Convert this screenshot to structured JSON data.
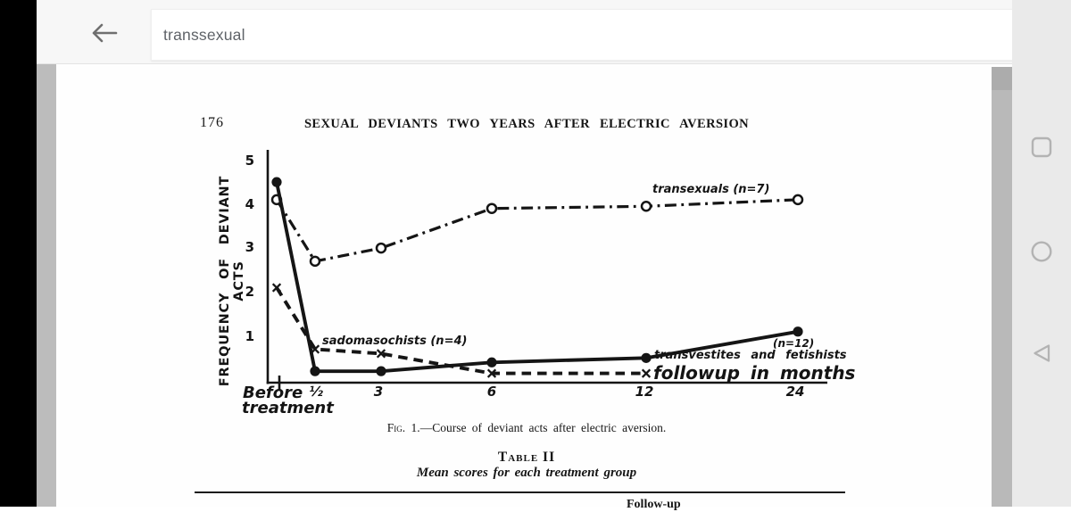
{
  "topbar": {
    "search_value": "transsexual",
    "icons": {
      "back_arrow": "←"
    }
  },
  "navbar": {
    "icons": {
      "recents": "square-outline",
      "home": "circle-outline",
      "back": "triangle-left-outline"
    }
  },
  "colors": {
    "topbar_bg": "#f7f7f7",
    "navbar_bg": "#eaeaea",
    "gutter": "#bcbcbc",
    "page_bg": "#fefefe",
    "ink": "#161616",
    "search_text": "#5f6368",
    "nav_icon": "#b3b3b3"
  },
  "page": {
    "page_number": "176",
    "running_title": "SEXUAL DEVIANTS TWO YEARS AFTER ELECTRIC AVERSION",
    "figure_caption_prefix": "Fig. 1.",
    "figure_caption_rest": "—Course of deviant acts after electric aversion.",
    "table_title": "Table II",
    "table_subtitle": "Mean scores for each treatment group",
    "table_partial_header": "Follow-up"
  },
  "chart_data": {
    "type": "line",
    "title": "Fig. 1. Course of deviant acts after electric aversion",
    "ylabel": "FREQUENCY OF DEVIANT ACTS",
    "xlabel": "followup in months",
    "ylim": [
      0,
      5
    ],
    "grid": false,
    "categories": [
      "Before treatment",
      "½",
      "3",
      "6",
      "12",
      "24"
    ],
    "axis": {
      "before_label_1": "Before",
      "before_label_2": "treatment",
      "xticks": [
        "½",
        "3",
        "6",
        "12",
        "24"
      ],
      "yticks": [
        "5",
        "4",
        "3",
        "2",
        "1"
      ]
    },
    "series": [
      {
        "name": "transsexuals (n=7)",
        "style": "dashdot",
        "marker": "circle-open",
        "values": [
          4.1,
          2.7,
          3.0,
          3.9,
          3.95,
          4.1
        ]
      },
      {
        "name": "sadomasochists (n=4)",
        "style": "dashed",
        "marker": "x",
        "values": [
          2.1,
          0.7,
          0.6,
          0.15,
          0.15,
          null
        ]
      },
      {
        "name": "transvestites and fetishists (n=12)",
        "style": "solid",
        "marker": "circle-filled",
        "values": [
          4.5,
          0.2,
          0.2,
          0.4,
          0.5,
          1.1
        ]
      }
    ],
    "annotations": {
      "transsexuals": "transexuals (n=7)",
      "sadomasochists": "sadomasochists (n=4)",
      "transvestites_n": "(n=12)",
      "transvestites": "transvestites and fetishists",
      "followup": "followup in months"
    }
  }
}
